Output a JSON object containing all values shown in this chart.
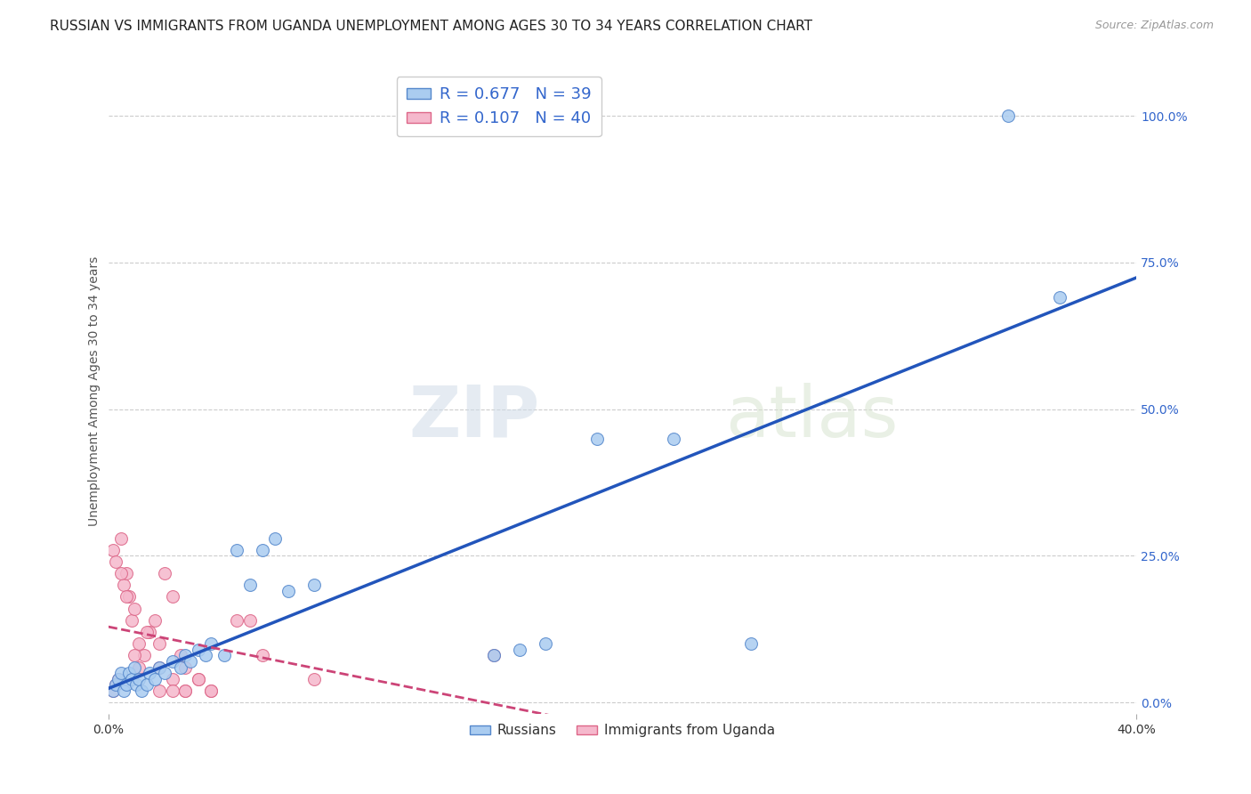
{
  "title": "RUSSIAN VS IMMIGRANTS FROM UGANDA UNEMPLOYMENT AMONG AGES 30 TO 34 YEARS CORRELATION CHART",
  "source": "Source: ZipAtlas.com",
  "ylabel": "Unemployment Among Ages 30 to 34 years",
  "xlim": [
    0.0,
    0.4
  ],
  "ylim": [
    -0.02,
    1.08
  ],
  "x_ticks": [
    0.0,
    0.4
  ],
  "x_tick_labels": [
    "0.0%",
    "40.0%"
  ],
  "y_ticks": [
    0.0,
    0.25,
    0.5,
    0.75,
    1.0
  ],
  "y_tick_labels": [
    "0.0%",
    "25.0%",
    "50.0%",
    "75.0%",
    "100.0%"
  ],
  "watermark_zip": "ZIP",
  "watermark_atlas": "atlas",
  "russian_R": 0.677,
  "russian_N": 39,
  "uganda_R": 0.107,
  "uganda_N": 40,
  "russian_color": "#aaccf0",
  "russian_edge_color": "#5588cc",
  "russian_line_color": "#2255bb",
  "uganda_color": "#f5b8cc",
  "uganda_edge_color": "#dd6688",
  "uganda_line_color": "#cc4477",
  "russia_scatter_x": [
    0.002,
    0.003,
    0.004,
    0.005,
    0.006,
    0.007,
    0.008,
    0.009,
    0.01,
    0.011,
    0.012,
    0.013,
    0.015,
    0.016,
    0.018,
    0.02,
    0.022,
    0.025,
    0.028,
    0.03,
    0.032,
    0.035,
    0.038,
    0.04,
    0.045,
    0.05,
    0.055,
    0.06,
    0.065,
    0.07,
    0.08,
    0.15,
    0.16,
    0.17,
    0.19,
    0.22,
    0.25,
    0.35,
    0.37
  ],
  "russia_scatter_y": [
    0.02,
    0.03,
    0.04,
    0.05,
    0.02,
    0.03,
    0.05,
    0.04,
    0.06,
    0.03,
    0.04,
    0.02,
    0.03,
    0.05,
    0.04,
    0.06,
    0.05,
    0.07,
    0.06,
    0.08,
    0.07,
    0.09,
    0.08,
    0.1,
    0.08,
    0.26,
    0.2,
    0.26,
    0.28,
    0.19,
    0.2,
    0.08,
    0.09,
    0.1,
    0.45,
    0.45,
    0.1,
    1.0,
    0.69
  ],
  "uganda_scatter_x": [
    0.002,
    0.003,
    0.004,
    0.005,
    0.006,
    0.007,
    0.008,
    0.009,
    0.01,
    0.012,
    0.014,
    0.016,
    0.018,
    0.02,
    0.022,
    0.025,
    0.028,
    0.03,
    0.035,
    0.04,
    0.002,
    0.003,
    0.005,
    0.007,
    0.01,
    0.012,
    0.015,
    0.02,
    0.025,
    0.03,
    0.04,
    0.05,
    0.06,
    0.08,
    0.02,
    0.025,
    0.03,
    0.035,
    0.055,
    0.15
  ],
  "uganda_scatter_y": [
    0.02,
    0.03,
    0.04,
    0.28,
    0.2,
    0.22,
    0.18,
    0.14,
    0.16,
    0.1,
    0.08,
    0.12,
    0.14,
    0.1,
    0.22,
    0.18,
    0.08,
    0.06,
    0.04,
    0.02,
    0.26,
    0.24,
    0.22,
    0.18,
    0.08,
    0.06,
    0.12,
    0.06,
    0.04,
    0.02,
    0.02,
    0.14,
    0.08,
    0.04,
    0.02,
    0.02,
    0.02,
    0.04,
    0.14,
    0.08
  ],
  "background_color": "#ffffff",
  "grid_color": "#cccccc",
  "title_fontsize": 11,
  "axis_label_fontsize": 10,
  "tick_fontsize": 10,
  "scatter_size": 100
}
